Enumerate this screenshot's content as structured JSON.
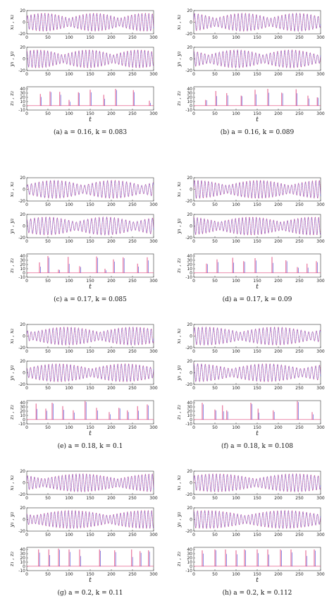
{
  "chart_data": [
    {
      "type": "line",
      "caption": "(a)  a = 0.16, k = 0.083",
      "series_colors": [
        "#e0457b",
        "#3b3fd8"
      ],
      "subplots": [
        {
          "ylabel": "x₁ , x₂",
          "yticks": [
            "20",
            "0",
            "-20"
          ],
          "ylim": [
            -20,
            20
          ]
        },
        {
          "ylabel": "y₁ , y₂",
          "yticks": [
            "20",
            "0",
            "-20"
          ],
          "ylim": [
            -20,
            20
          ]
        },
        {
          "ylabel": "z₁ , z₂",
          "yticks": [
            "40",
            "30",
            "20",
            "10",
            "0",
            "-10"
          ],
          "ylim": [
            -10,
            45
          ]
        }
      ],
      "xticks": [
        "0",
        "50",
        "100",
        "150",
        "200",
        "250",
        "300"
      ],
      "xlim": [
        0,
        300
      ],
      "xlabel": "t",
      "z_spikes": [
        {
          "t": 32,
          "v": 28
        },
        {
          "t": 55,
          "v": 34
        },
        {
          "t": 78,
          "v": 33
        },
        {
          "t": 100,
          "v": 14
        },
        {
          "t": 122,
          "v": 32
        },
        {
          "t": 150,
          "v": 38
        },
        {
          "t": 182,
          "v": 26
        },
        {
          "t": 210,
          "v": 40
        },
        {
          "t": 252,
          "v": 37
        },
        {
          "t": 290,
          "v": 12
        }
      ]
    },
    {
      "type": "line",
      "caption": "(b)  a = 0.16, k = 0.089",
      "series_colors": [
        "#e0457b",
        "#3b3fd8"
      ],
      "subplots": [
        {
          "ylabel": "x₁ , x₂",
          "yticks": [
            "20",
            "0",
            "-20"
          ],
          "ylim": [
            -20,
            20
          ]
        },
        {
          "ylabel": "y₁ , y₂",
          "yticks": [
            "20",
            "0",
            "-20"
          ],
          "ylim": [
            -20,
            20
          ]
        },
        {
          "ylabel": "z₁ , z₂",
          "yticks": [
            "40",
            "30",
            "20",
            "10",
            "0",
            "-10"
          ],
          "ylim": [
            -10,
            45
          ]
        }
      ],
      "xticks": [
        "0",
        "50",
        "100",
        "150",
        "200",
        "250",
        "300"
      ],
      "xlim": [
        0,
        300
      ],
      "xlabel": "t",
      "z_spikes": [
        {
          "t": 28,
          "v": 14
        },
        {
          "t": 52,
          "v": 35
        },
        {
          "t": 78,
          "v": 30
        },
        {
          "t": 112,
          "v": 24
        },
        {
          "t": 145,
          "v": 38
        },
        {
          "t": 175,
          "v": 40
        },
        {
          "t": 208,
          "v": 31
        },
        {
          "t": 242,
          "v": 39
        },
        {
          "t": 270,
          "v": 24
        },
        {
          "t": 292,
          "v": 20
        }
      ]
    },
    {
      "type": "line",
      "caption": "(c)  a = 0.17, k = 0.085",
      "series_colors": [
        "#e0457b",
        "#3b3fd8"
      ],
      "subplots": [
        {
          "ylabel": "x₁ , x₂",
          "yticks": [
            "20",
            "0",
            "-20"
          ],
          "ylim": [
            -20,
            20
          ]
        },
        {
          "ylabel": "y₁ , y₂",
          "yticks": [
            "20",
            "0",
            "-20"
          ],
          "ylim": [
            -20,
            20
          ]
        },
        {
          "ylabel": "z₁ , z₂",
          "yticks": [
            "40",
            "30",
            "20",
            "10",
            "0",
            "-10"
          ],
          "ylim": [
            -10,
            45
          ]
        }
      ],
      "xticks": [
        "0",
        "50",
        "100",
        "150",
        "200",
        "250",
        "300"
      ],
      "xlim": [
        0,
        300
      ],
      "xlabel": "t",
      "z_spikes": [
        {
          "t": 30,
          "v": 25
        },
        {
          "t": 50,
          "v": 40
        },
        {
          "t": 75,
          "v": 8
        },
        {
          "t": 98,
          "v": 38
        },
        {
          "t": 125,
          "v": 16
        },
        {
          "t": 165,
          "v": 39
        },
        {
          "t": 185,
          "v": 10
        },
        {
          "t": 205,
          "v": 32
        },
        {
          "t": 228,
          "v": 37
        },
        {
          "t": 262,
          "v": 22
        },
        {
          "t": 285,
          "v": 37
        }
      ]
    },
    {
      "type": "line",
      "caption": "(d)  a = 0.17, k = 0.09",
      "series_colors": [
        "#e0457b",
        "#3b3fd8"
      ],
      "subplots": [
        {
          "ylabel": "x₁ , x₂",
          "yticks": [
            "20",
            "0",
            "-20"
          ],
          "ylim": [
            -20,
            20
          ]
        },
        {
          "ylabel": "y₁ , y₂",
          "yticks": [
            "20",
            "0",
            "-20"
          ],
          "ylim": [
            -20,
            20
          ]
        },
        {
          "ylabel": "z₁ , z₂",
          "yticks": [
            "40",
            "30",
            "20",
            "10",
            "0",
            "-10"
          ],
          "ylim": [
            -10,
            45
          ]
        }
      ],
      "xticks": [
        "0",
        "50",
        "100",
        "150",
        "200",
        "250",
        "300"
      ],
      "xlim": [
        0,
        300
      ],
      "xlabel": "t",
      "z_spikes": [
        {
          "t": 30,
          "v": 22
        },
        {
          "t": 55,
          "v": 32
        },
        {
          "t": 92,
          "v": 36
        },
        {
          "t": 118,
          "v": 28
        },
        {
          "t": 145,
          "v": 35
        },
        {
          "t": 185,
          "v": 38
        },
        {
          "t": 218,
          "v": 30
        },
        {
          "t": 245,
          "v": 14
        },
        {
          "t": 268,
          "v": 22
        },
        {
          "t": 290,
          "v": 28
        }
      ]
    },
    {
      "type": "line",
      "caption": "(e)  a = 0.18, k = 0.1",
      "series_colors": [
        "#e0457b",
        "#3b3fd8"
      ],
      "subplots": [
        {
          "ylabel": "x₁ , x₂",
          "yticks": [
            "20",
            "0",
            "-20"
          ],
          "ylim": [
            -20,
            20
          ]
        },
        {
          "ylabel": "y₁ , y₂",
          "yticks": [
            "20",
            "0",
            "-20"
          ],
          "ylim": [
            -20,
            20
          ]
        },
        {
          "ylabel": "z₁ , z₂",
          "yticks": [
            "40",
            "30",
            "20",
            "10",
            "0",
            "-10"
          ],
          "ylim": [
            -10,
            45
          ]
        }
      ],
      "xticks": [
        "0",
        "50",
        "100",
        "150",
        "200",
        "250",
        "300"
      ],
      "xlim": [
        0,
        300
      ],
      "xlabel": "t",
      "z_spikes": [
        {
          "t": 22,
          "v": 38
        },
        {
          "t": 45,
          "v": 26
        },
        {
          "t": 60,
          "v": 40
        },
        {
          "t": 85,
          "v": 32
        },
        {
          "t": 110,
          "v": 22
        },
        {
          "t": 138,
          "v": 44
        },
        {
          "t": 165,
          "v": 28
        },
        {
          "t": 195,
          "v": 18
        },
        {
          "t": 218,
          "v": 28
        },
        {
          "t": 238,
          "v": 22
        },
        {
          "t": 262,
          "v": 32
        },
        {
          "t": 285,
          "v": 36
        }
      ]
    },
    {
      "type": "line",
      "caption": "(f)  a = 0.18, k = 0.108",
      "series_colors": [
        "#e0457b",
        "#3b3fd8"
      ],
      "subplots": [
        {
          "ylabel": "x₁ , x₂",
          "yticks": [
            "20",
            "0",
            "-20"
          ],
          "ylim": [
            -20,
            20
          ]
        },
        {
          "ylabel": "y₁ , y₂",
          "yticks": [
            "20",
            "0",
            "-20"
          ],
          "ylim": [
            -20,
            20
          ]
        },
        {
          "ylabel": "z₁ , z₂",
          "yticks": [
            "40",
            "30",
            "20",
            "10",
            "0",
            "-10"
          ],
          "ylim": [
            -10,
            45
          ]
        }
      ],
      "xticks": [
        "0",
        "50",
        "100",
        "150",
        "200",
        "250",
        "300"
      ],
      "xlim": [
        0,
        300
      ],
      "xlabel": "t",
      "z_spikes": [
        {
          "t": 20,
          "v": 40
        },
        {
          "t": 50,
          "v": 24
        },
        {
          "t": 68,
          "v": 34
        },
        {
          "t": 78,
          "v": 22
        },
        {
          "t": 135,
          "v": 40
        },
        {
          "t": 152,
          "v": 26
        },
        {
          "t": 188,
          "v": 22
        },
        {
          "t": 245,
          "v": 44
        },
        {
          "t": 280,
          "v": 18
        }
      ]
    },
    {
      "type": "line",
      "caption": "(g)  a = 0.2, k = 0.11",
      "series_colors": [
        "#e0457b",
        "#3b3fd8"
      ],
      "subplots": [
        {
          "ylabel": "x₁ , x₂",
          "yticks": [
            "20",
            "0",
            "-20"
          ],
          "ylim": [
            -20,
            20
          ]
        },
        {
          "ylabel": "y₁ , y₂",
          "yticks": [
            "20",
            "0",
            "-20"
          ],
          "ylim": [
            -20,
            20
          ]
        },
        {
          "ylabel": "z₁ , z₂",
          "yticks": [
            "40",
            "30",
            "20",
            "10",
            "0",
            "-10"
          ],
          "ylim": [
            -10,
            45
          ]
        }
      ],
      "xticks": [
        "0",
        "50",
        "100",
        "150",
        "200",
        "250",
        "300"
      ],
      "xlim": [
        0,
        300
      ],
      "xlabel": "t",
      "z_spikes": [
        {
          "t": 28,
          "v": 40
        },
        {
          "t": 52,
          "v": 40
        },
        {
          "t": 75,
          "v": 42
        },
        {
          "t": 100,
          "v": 40
        },
        {
          "t": 125,
          "v": 40
        },
        {
          "t": 172,
          "v": 40
        },
        {
          "t": 208,
          "v": 38
        },
        {
          "t": 248,
          "v": 40
        },
        {
          "t": 268,
          "v": 36
        },
        {
          "t": 288,
          "v": 38
        }
      ]
    },
    {
      "type": "line",
      "caption": "(h)  a = 0.2, k = 0.112",
      "series_colors": [
        "#e0457b",
        "#3b3fd8"
      ],
      "subplots": [
        {
          "ylabel": "x₁ , x₂",
          "yticks": [
            "20",
            "0",
            "-20"
          ],
          "ylim": [
            -20,
            20
          ]
        },
        {
          "ylabel": "y₁ , y₂",
          "yticks": [
            "20",
            "0",
            "-20"
          ],
          "ylim": [
            -20,
            20
          ]
        },
        {
          "ylabel": "z₁ , z₂",
          "yticks": [
            "40",
            "30",
            "20",
            "10",
            "0",
            "-10"
          ],
          "ylim": [
            -10,
            45
          ]
        }
      ],
      "xticks": [
        "0",
        "50",
        "100",
        "150",
        "200",
        "250",
        "300"
      ],
      "xlim": [
        0,
        300
      ],
      "xlabel": "t",
      "z_spikes": [
        {
          "t": 20,
          "v": 38
        },
        {
          "t": 50,
          "v": 40
        },
        {
          "t": 75,
          "v": 40
        },
        {
          "t": 100,
          "v": 38
        },
        {
          "t": 120,
          "v": 40
        },
        {
          "t": 150,
          "v": 40
        },
        {
          "t": 175,
          "v": 40
        },
        {
          "t": 205,
          "v": 40
        },
        {
          "t": 230,
          "v": 40
        },
        {
          "t": 265,
          "v": 38
        },
        {
          "t": 285,
          "v": 40
        }
      ]
    }
  ]
}
